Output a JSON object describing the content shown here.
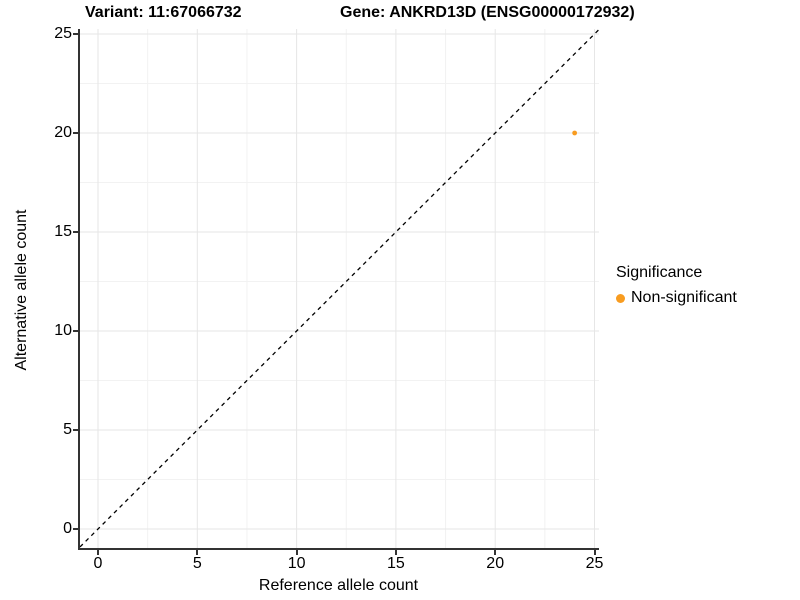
{
  "header": {
    "variant_title": "Variant: 11:67066732",
    "gene_title": "Gene: ANKRD13D (ENSG00000172932)"
  },
  "axes": {
    "x_label": "Reference allele count",
    "y_label": "Alternative allele count",
    "x_tick_labels": [
      "0",
      "5",
      "10",
      "15",
      "20",
      "25"
    ],
    "y_tick_labels": [
      "0",
      "5",
      "10",
      "15",
      "20",
      "25"
    ]
  },
  "legend": {
    "title": "Significance",
    "items": [
      {
        "label": "Non-significant",
        "color": "#F89C20"
      }
    ]
  },
  "colors": {
    "point": "#F89C20",
    "axis_line": "#333333",
    "grid_major": "#E6E6E6",
    "grid_minor": "#F2F2F2",
    "identity_line": "#000000",
    "text": "#000000"
  },
  "chart_data": {
    "type": "scatter",
    "title": "Variant: 11:67066732   Gene: ANKRD13D (ENSG00000172932)",
    "xlabel": "Reference allele count",
    "ylabel": "Alternative allele count",
    "xlim": [
      0,
      25
    ],
    "ylim": [
      0,
      25
    ],
    "x_ticks": [
      0,
      5,
      10,
      15,
      20,
      25
    ],
    "y_ticks": [
      0,
      5,
      10,
      15,
      20,
      25
    ],
    "x_minor_ticks": [
      2.5,
      7.5,
      12.5,
      17.5,
      22.5
    ],
    "y_minor_ticks": [
      2.5,
      7.5,
      12.5,
      17.5,
      22.5
    ],
    "grid": true,
    "legend_position": "right",
    "identity_line": {
      "slope": 1,
      "intercept": 0,
      "style": "dashed"
    },
    "series": [
      {
        "name": "Non-significant",
        "color": "#F89C20",
        "points": [
          {
            "x": 24,
            "y": 20
          }
        ]
      }
    ]
  }
}
